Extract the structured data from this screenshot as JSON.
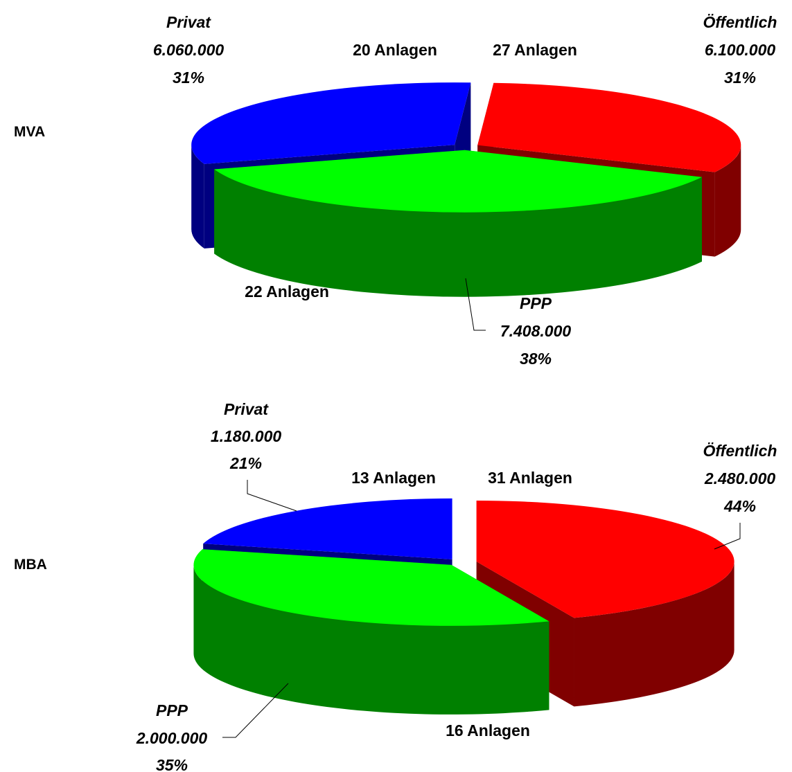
{
  "colors": {
    "oeffentlich": {
      "top": "#ff0000",
      "side": "#800000"
    },
    "ppp": {
      "top": "#00ff00",
      "side": "#008000"
    },
    "privat": {
      "top": "#0000ff",
      "side": "#000080"
    }
  },
  "chart_data": [
    {
      "type": "pie",
      "title": "MVA",
      "title_position": "left",
      "three_d": true,
      "slices": [
        {
          "name": "Öffentlich",
          "value": 6100000,
          "value_label": "6.100.000",
          "percent": 31,
          "percent_label": "31%",
          "count_label": "27 Anlagen",
          "exploded": true,
          "color": "#ff0000"
        },
        {
          "name": "PPP",
          "value": 7408000,
          "value_label": "7.408.000",
          "percent": 38,
          "percent_label": "38%",
          "count_label": "22 Anlagen",
          "exploded": true,
          "color": "#00ff00"
        },
        {
          "name": "Privat",
          "value": 6060000,
          "value_label": "6.060.000",
          "percent": 31,
          "percent_label": "31%",
          "count_label": "20 Anlagen",
          "exploded": true,
          "color": "#0000ff"
        }
      ]
    },
    {
      "type": "pie",
      "title": "MBA",
      "title_position": "left",
      "three_d": true,
      "slices": [
        {
          "name": "Öffentlich",
          "value": 2480000,
          "value_label": "2.480.000",
          "percent": 44,
          "percent_label": "44%",
          "count_label": "31 Anlagen",
          "exploded": true,
          "color": "#ff0000"
        },
        {
          "name": "PPP",
          "value": 2000000,
          "value_label": "2.000.000",
          "percent": 35,
          "percent_label": "35%",
          "count_label": "16 Anlagen",
          "exploded": true,
          "color": "#00ff00"
        },
        {
          "name": "Privat",
          "value": 1180000,
          "value_label": "1.180.000",
          "percent": 21,
          "percent_label": "21%",
          "count_label": "13 Anlagen",
          "exploded": true,
          "color": "#0000ff"
        }
      ]
    }
  ]
}
